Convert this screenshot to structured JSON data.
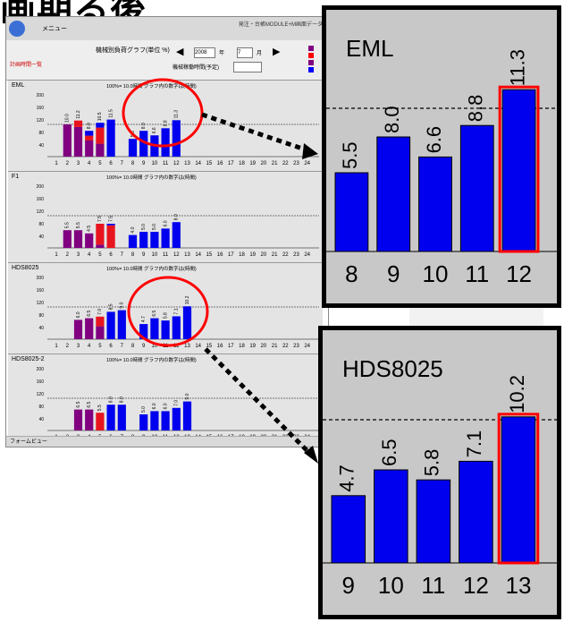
{
  "heading": "画期る後",
  "window": {
    "menu_label": "メニュー",
    "title_right": "発注・台帳MODULE+M画面データ",
    "title": "機械別負荷グラフ(単位 %)",
    "year_value": "2008",
    "year_label": "年",
    "month_value": "7",
    "month_label": "月",
    "filter_label": "機械稼働時間(予定)",
    "left_label": "計画時間一覧",
    "legend_colors": [
      "#800080",
      "#ff0000",
      "#800080",
      "#0000ff"
    ],
    "status": "フォームビュー"
  },
  "colors": {
    "purple": "#800080",
    "red": "#e8141e",
    "blue": "#0000ee",
    "highlight": "#ff0000",
    "zoom_bg": "#c8c8c8",
    "panel_bg": "#e4e4e4"
  },
  "panels": [
    {
      "name": "EML",
      "info": "100%= 10.0時間 グラフ内の数字は(時間)",
      "yticks": [
        "200",
        "160",
        "120",
        "80",
        "40"
      ],
      "bars": [
        {
          "day": 2,
          "purple": 10.0,
          "red": 0,
          "blue": 0,
          "label": "10.0"
        },
        {
          "day": 3,
          "purple": 9.2,
          "red": 2.0,
          "blue": 0,
          "label": "11.2"
        },
        {
          "day": 4,
          "purple": 5.0,
          "red": 1.5,
          "blue": 1.5,
          "label": "8.0"
        },
        {
          "day": 5,
          "purple": 4.0,
          "red": 5.0,
          "blue": 1.5,
          "label": "10.5"
        },
        {
          "day": 6,
          "purple": 0,
          "red": 0,
          "blue": 11.5,
          "label": "11.5"
        },
        {
          "day": 8,
          "purple": 0,
          "red": 0,
          "blue": 5.5,
          "label": "5.5"
        },
        {
          "day": 9,
          "purple": 0,
          "red": 0,
          "blue": 8.0,
          "label": "8.0"
        },
        {
          "day": 10,
          "purple": 0,
          "red": 0,
          "blue": 6.6,
          "label": "6.6"
        },
        {
          "day": 11,
          "purple": 0,
          "red": 0,
          "blue": 8.8,
          "label": "8.8"
        },
        {
          "day": 12,
          "purple": 0,
          "red": 0,
          "blue": 11.3,
          "label": "11.3"
        }
      ]
    },
    {
      "name": "F1",
      "info": "100%= 10.0時間 グラフ内の数字は(時間)",
      "yticks": [
        "200",
        "160",
        "120",
        "80",
        "40"
      ],
      "bars": [
        {
          "day": 2,
          "purple": 5.5,
          "red": 0,
          "blue": 0,
          "label": "5.5"
        },
        {
          "day": 3,
          "purple": 5.5,
          "red": 0,
          "blue": 0,
          "label": "5.5"
        },
        {
          "day": 4,
          "purple": 4.5,
          "red": 0,
          "blue": 0,
          "label": "4.5"
        },
        {
          "day": 5,
          "purple": 1.0,
          "red": 6.5,
          "blue": 0,
          "label": "7.5"
        },
        {
          "day": 6,
          "purple": 0,
          "red": 7.0,
          "blue": 0.5,
          "label": "7.5"
        },
        {
          "day": 8,
          "purple": 0,
          "red": 0,
          "blue": 4.0,
          "label": "4.0"
        },
        {
          "day": 9,
          "purple": 0,
          "red": 0,
          "blue": 5.0,
          "label": "5.0"
        },
        {
          "day": 10,
          "purple": 0,
          "red": 0,
          "blue": 5.0,
          "label": "5.0"
        },
        {
          "day": 11,
          "purple": 0,
          "red": 0,
          "blue": 6.0,
          "label": "6.0"
        },
        {
          "day": 12,
          "purple": 0,
          "red": 0,
          "blue": 8.0,
          "label": "8.0"
        }
      ]
    },
    {
      "name": "HDS8025",
      "info": "100%= 10.0時間 グラフ内の数字は(時間)",
      "yticks": [
        "200",
        "160",
        "120",
        "80",
        "40"
      ],
      "bars": [
        {
          "day": 3,
          "purple": 6.0,
          "red": 0,
          "blue": 0,
          "label": "6.0"
        },
        {
          "day": 4,
          "purple": 6.5,
          "red": 0,
          "blue": 0,
          "label": "6.5"
        },
        {
          "day": 5,
          "purple": 4.0,
          "red": 3.0,
          "blue": 0,
          "label": "7.0"
        },
        {
          "day": 6,
          "purple": 0,
          "red": 0,
          "blue": 8.5,
          "label": "8.5"
        },
        {
          "day": 7,
          "purple": 0,
          "red": 0,
          "blue": 9.0,
          "label": "9.0"
        },
        {
          "day": 9,
          "purple": 0,
          "red": 0,
          "blue": 4.7,
          "label": "4.7"
        },
        {
          "day": 10,
          "purple": 0,
          "red": 0,
          "blue": 6.5,
          "label": "6.5"
        },
        {
          "day": 11,
          "purple": 0,
          "red": 0,
          "blue": 5.8,
          "label": "5.8"
        },
        {
          "day": 12,
          "purple": 0,
          "red": 0,
          "blue": 7.1,
          "label": "7.1"
        },
        {
          "day": 13,
          "purple": 0,
          "red": 0,
          "blue": 10.2,
          "label": "10.2"
        }
      ]
    },
    {
      "name": "HDS8025-2",
      "info": "100%= 10.0時間 グラフ内の数字は(時間)",
      "yticks": [
        "200",
        "160",
        "120",
        "80",
        "40"
      ],
      "bars": [
        {
          "day": 3,
          "purple": 6.5,
          "red": 0,
          "blue": 0,
          "label": "6.5"
        },
        {
          "day": 4,
          "purple": 6.5,
          "red": 0,
          "blue": 0,
          "label": "6.5"
        },
        {
          "day": 5,
          "purple": 0,
          "red": 5.5,
          "blue": 0,
          "label": "5.5"
        },
        {
          "day": 6,
          "purple": 0,
          "red": 0,
          "blue": 8.0,
          "label": "8.0"
        },
        {
          "day": 7,
          "purple": 0,
          "red": 0,
          "blue": 8.0,
          "label": "8.0"
        },
        {
          "day": 9,
          "purple": 0,
          "red": 0,
          "blue": 5.0,
          "label": "5.0"
        },
        {
          "day": 10,
          "purple": 0,
          "red": 0,
          "blue": 6.0,
          "label": "6.0"
        },
        {
          "day": 11,
          "purple": 0,
          "red": 0,
          "blue": 6.0,
          "label": "6.0"
        },
        {
          "day": 12,
          "purple": 0,
          "red": 0,
          "blue": 7.0,
          "label": "7.0"
        },
        {
          "day": 13,
          "purple": 0,
          "red": 0,
          "blue": 9.0,
          "label": "9.0"
        }
      ]
    }
  ],
  "days": [
    "1",
    "2",
    "3",
    "4",
    "5",
    "6",
    "7",
    "8",
    "9",
    "10",
    "11",
    "12",
    "13",
    "14",
    "15",
    "16",
    "17",
    "18",
    "19",
    "20",
    "21",
    "22",
    "23",
    "24"
  ],
  "zoom_eml": {
    "name": "EML",
    "bars": [
      {
        "day": "8",
        "value": 5.5,
        "label": "5.5",
        "highlight": false
      },
      {
        "day": "9",
        "value": 8.0,
        "label": "8.0",
        "highlight": false
      },
      {
        "day": "10",
        "value": 6.6,
        "label": "6.6",
        "highlight": false
      },
      {
        "day": "11",
        "value": 8.8,
        "label": "8.8",
        "highlight": false
      },
      {
        "day": "12",
        "value": 11.3,
        "label": "11.3",
        "highlight": true
      }
    ]
  },
  "zoom_hds": {
    "name": "HDS8025",
    "bars": [
      {
        "day": "9",
        "value": 4.7,
        "label": "4.7",
        "highlight": false
      },
      {
        "day": "10",
        "value": 6.5,
        "label": "6.5",
        "highlight": false
      },
      {
        "day": "11",
        "value": 5.8,
        "label": "5.8",
        "highlight": false
      },
      {
        "day": "12",
        "value": 7.1,
        "label": "7.1",
        "highlight": false
      },
      {
        "day": "13",
        "value": 10.2,
        "label": "10.2",
        "highlight": true
      }
    ]
  }
}
